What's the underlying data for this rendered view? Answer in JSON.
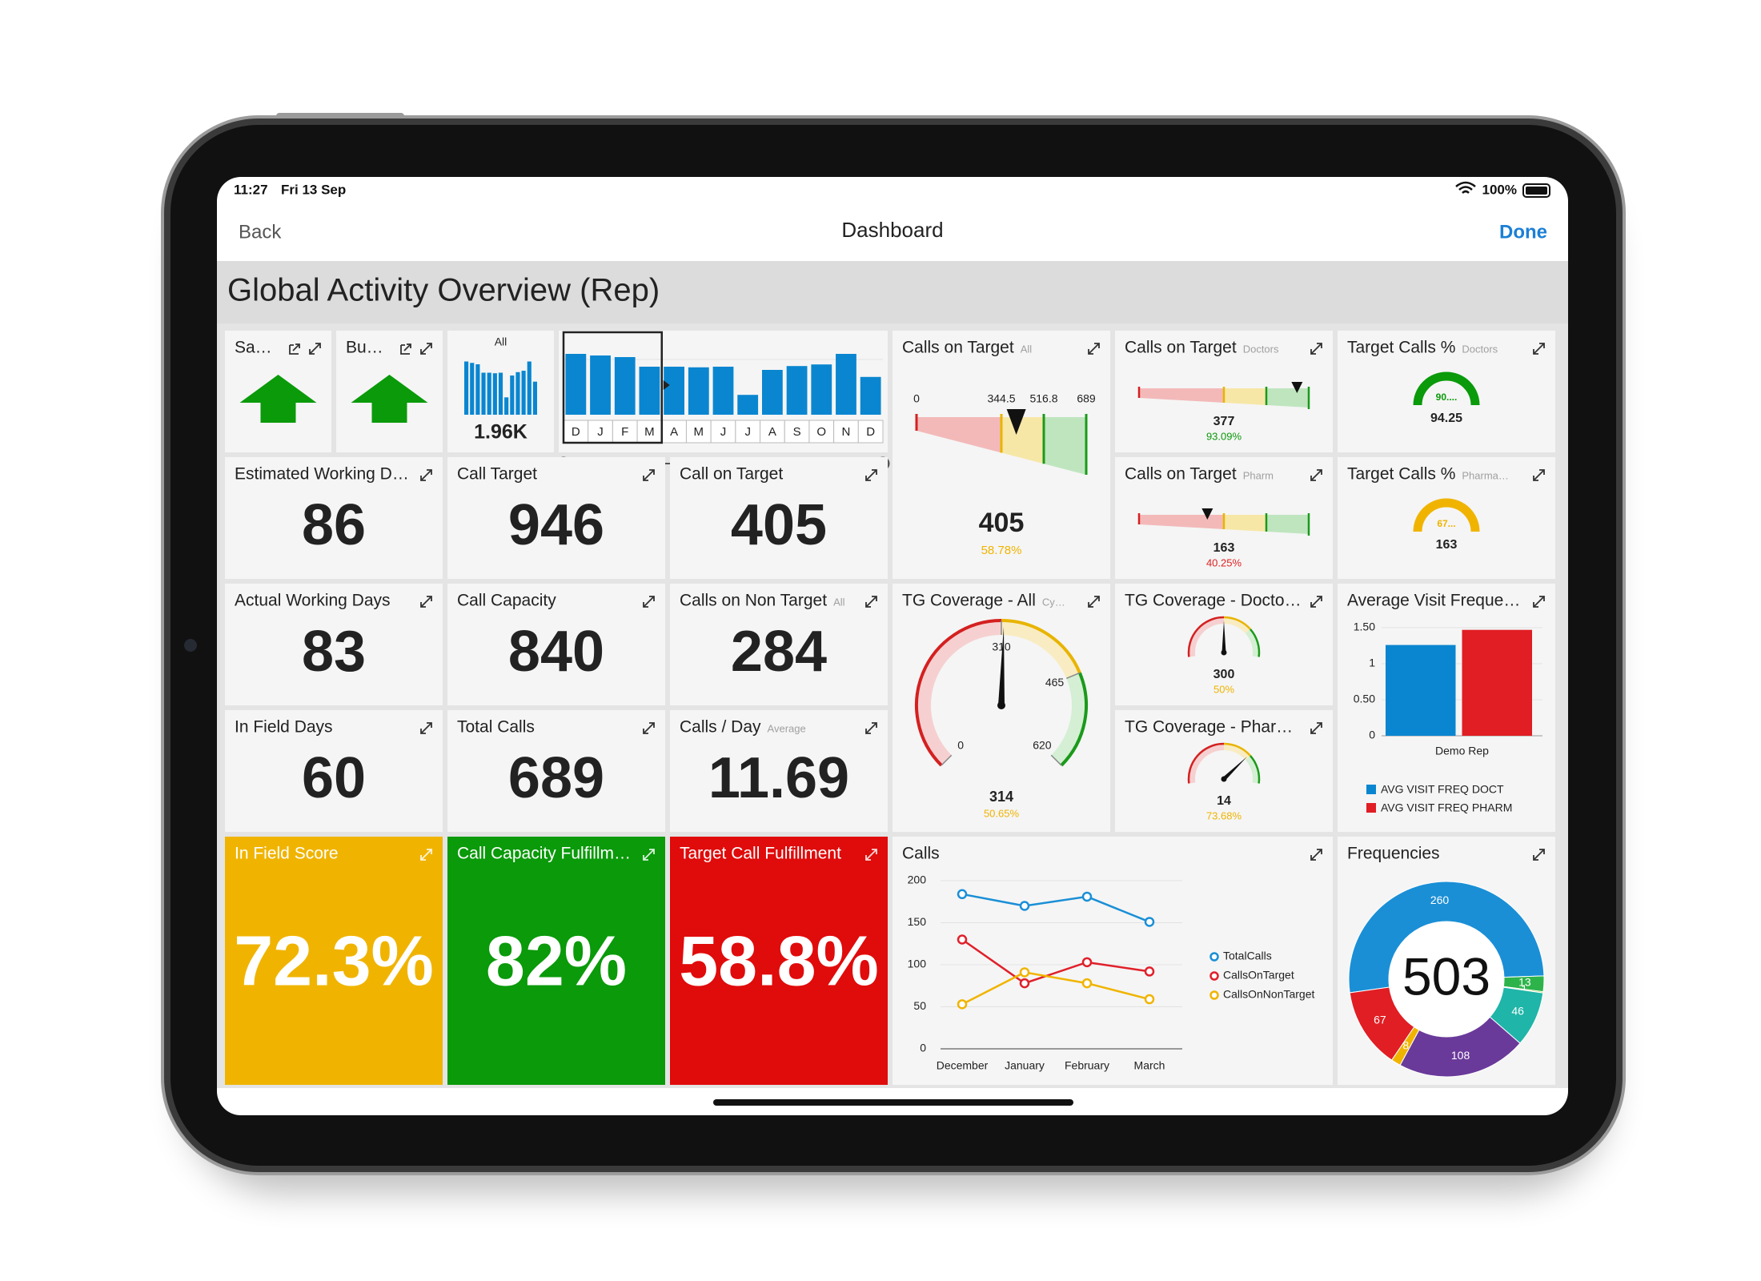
{
  "status_bar": {
    "time": "11:27",
    "date": "Fri 13 Sep",
    "battery": "100%"
  },
  "nav": {
    "back": "Back",
    "title": "Dashboard",
    "done": "Done"
  },
  "header": {
    "title": "Global Activity Overview (Rep)"
  },
  "tiles": [
    {
      "type": "arrow",
      "title": "Sa…",
      "color": "#0a9a0a"
    },
    {
      "type": "arrow",
      "title": "Bu…",
      "color": "#0a9a0a"
    },
    {
      "type": "mini",
      "caption": "All",
      "value": "1.96K",
      "color": "#0a86d0"
    },
    {
      "type": "months",
      "categories": [
        "D",
        "J",
        "F",
        "M",
        "A",
        "M",
        "J",
        "J",
        "A",
        "S",
        "O",
        "N",
        "D"
      ],
      "values": [
        190,
        185,
        180,
        150,
        150,
        148,
        150,
        62,
        140,
        152,
        157,
        190,
        118
      ],
      "ylim": [
        0,
        200
      ],
      "color": "#0a86d0"
    },
    {
      "type": "lgauge",
      "title": "Calls on Target",
      "subtitle": "All",
      "ticks": [
        0,
        344.5,
        516.8,
        689
      ],
      "value": 405,
      "percent": "58.78%",
      "pct_color": "#f0b400"
    },
    {
      "type": "sgauge",
      "title": "Calls on Target",
      "subtitle": "Doctors",
      "value": 377,
      "percent": {
        "value": 93.09,
        "label": "93.09%"
      },
      "pct_color": "#0a9a0a"
    },
    {
      "type": "semi",
      "title": "Target Calls %",
      "subtitle": "Doctors",
      "arc_label": "90....",
      "value": 94.25,
      "color": "#0a9a0a"
    },
    {
      "type": "sgauge",
      "title": "Calls on Target",
      "subtitle": "Pharm",
      "value": 163,
      "percent": {
        "value": 40.25,
        "label": "40.25%"
      },
      "pct_color": "#e02020"
    },
    {
      "type": "semi",
      "title": "Target Calls %",
      "subtitle": "Pharma…",
      "arc_label": "67...",
      "value": 163,
      "color": "#f0b400"
    },
    {
      "type": "kpi",
      "title": "Estimated Working D…",
      "value": 86
    },
    {
      "type": "kpi",
      "title": "Call Target",
      "value": 946
    },
    {
      "type": "kpi",
      "title": "Call on Target",
      "value": 405
    },
    {
      "type": "kpi",
      "title": "Actual Working Days",
      "value": 83
    },
    {
      "type": "kpi",
      "title": "Call Capacity",
      "value": 840
    },
    {
      "type": "kpi",
      "title": "Calls on Non Target",
      "subtitle": "All",
      "value": 284
    },
    {
      "type": "arcgauge",
      "title": "TG Coverage - All",
      "subtitle": "Cy…",
      "ticks": [
        0,
        310,
        465,
        620
      ],
      "value": 314,
      "percent": "50.65%",
      "pct_color": "#f0b400"
    },
    {
      "type": "sarc",
      "title": "TG Coverage - Docto…",
      "value": 300,
      "percent": {
        "value": 50,
        "label": "50%"
      },
      "pct_color": "#f0b400"
    },
    {
      "type": "vbars",
      "title": "Average Visit Freque…",
      "categories": [
        "Demo Rep"
      ],
      "series": [
        {
          "name": "AVG VISIT FREQ DOCT",
          "color": "#0a86d0",
          "values": [
            1.26
          ]
        },
        {
          "name": "AVG VISIT FREQ PHARM",
          "color": "#e01e24",
          "values": [
            1.47
          ]
        }
      ],
      "ylim": [
        0,
        1.5
      ],
      "yticks": [
        0,
        {
          "value": 0.5,
          "label": "0.50"
        },
        1,
        {
          "value": 1.5,
          "label": "1.50"
        }
      ]
    },
    {
      "type": "kpi",
      "title": "In Field Days",
      "value": 60
    },
    {
      "type": "kpi",
      "title": "Total Calls",
      "value": 689
    },
    {
      "type": "kpi",
      "title": "Calls / Day",
      "subtitle": "Average",
      "value": 11.69
    },
    {
      "type": "sarc",
      "title": "TG Coverage - Phar…",
      "value": 14,
      "percent": {
        "value": 73.68,
        "label": "73.68%"
      },
      "pct_color": "#f0b400"
    },
    {
      "type": "fill",
      "title": "In Field Score",
      "value": "72.3%",
      "color": "#f0b400"
    },
    {
      "type": "fill",
      "title": "Call Capacity Fulfillm…",
      "value": "82%",
      "color": "#0a9a0a"
    },
    {
      "type": "fill",
      "title": "Target Call Fulfillment",
      "value": "58.8%",
      "color": "#e00b0b"
    },
    {
      "type": "line",
      "title": "Calls",
      "categories": [
        "December",
        "January",
        "February",
        "March"
      ],
      "series": [
        {
          "name": "TotalCalls",
          "color": "#1a8fd6",
          "values": [
            184,
            170,
            181,
            151
          ]
        },
        {
          "name": "CallsOnTarget",
          "color": "#e0202a",
          "values": [
            130,
            78,
            103,
            92
          ]
        },
        {
          "name": "CallsOnNonTarget",
          "color": "#f0b400",
          "values": [
            53,
            91,
            78,
            59
          ]
        }
      ],
      "ylim": [
        0,
        200
      ],
      "yticks": [
        0,
        50,
        100,
        150,
        200
      ]
    },
    {
      "type": "donut",
      "title": "Frequencies",
      "total": 503,
      "values": [
        260,
        13,
        1,
        46,
        108,
        8,
        67
      ],
      "colors": [
        "#1a8fd6",
        "#2db34a",
        "#a8c83a",
        "#1fb5a8",
        "#6a3a9a",
        "#f0b400",
        "#e01e24"
      ]
    }
  ]
}
